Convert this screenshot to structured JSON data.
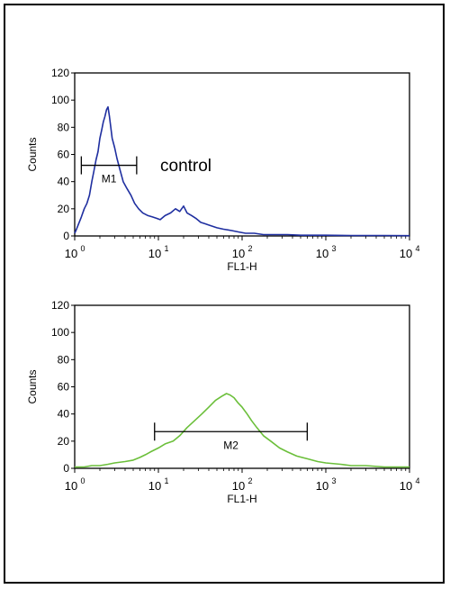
{
  "chart_data": [
    {
      "type": "line",
      "title": "",
      "annotation": "control",
      "xlabel": "FL1-H",
      "ylabel": "Counts",
      "xscale": "log",
      "xlim": [
        1,
        10000
      ],
      "ylim": [
        0,
        120
      ],
      "yticks": [
        0,
        20,
        40,
        60,
        80,
        100,
        120
      ],
      "xticks": [
        {
          "base": "10",
          "exp": "0"
        },
        {
          "base": "10",
          "exp": "1"
        },
        {
          "base": "10",
          "exp": "2"
        },
        {
          "base": "10",
          "exp": "3"
        },
        {
          "base": "10",
          "exp": "4"
        }
      ],
      "color": "#1f2fa0",
      "marker": {
        "label": "M1",
        "range": [
          1.2,
          5.5
        ],
        "y": 52
      },
      "series": [
        {
          "x": [
            1,
            1.05,
            1.1,
            1.2,
            1.3,
            1.4,
            1.5,
            1.6,
            1.7,
            1.8,
            1.9,
            2.0,
            2.1,
            2.2,
            2.3,
            2.4,
            2.5,
            2.6,
            2.7,
            2.8,
            3.0,
            3.2,
            3.5,
            3.8,
            4.2,
            4.7,
            5.2,
            5.8,
            6.5,
            7.5,
            8.5,
            9.5,
            10.5,
            12,
            14,
            16,
            18,
            20,
            22,
            25,
            28,
            32,
            36,
            40,
            50,
            60,
            75,
            90,
            110,
            140,
            180,
            250,
            350,
            500,
            700,
            1000,
            2000,
            5000,
            10000
          ],
          "y": [
            2,
            5,
            8,
            14,
            20,
            24,
            30,
            40,
            48,
            56,
            62,
            72,
            78,
            84,
            88,
            93,
            95,
            88,
            80,
            72,
            65,
            57,
            48,
            40,
            35,
            30,
            24,
            20,
            17,
            15,
            14,
            13,
            12,
            15,
            17,
            20,
            18,
            22,
            17,
            15,
            13,
            10,
            9,
            8,
            6,
            5,
            4,
            3,
            2,
            2,
            1,
            1,
            1,
            0.5,
            0.5,
            0.5,
            0.3,
            0.3,
            0.2
          ]
        }
      ]
    },
    {
      "type": "line",
      "title": "",
      "xlabel": "FL1-H",
      "ylabel": "Counts",
      "xscale": "log",
      "xlim": [
        1,
        10000
      ],
      "ylim": [
        0,
        120
      ],
      "yticks": [
        0,
        20,
        40,
        60,
        80,
        100,
        120
      ],
      "xticks": [
        {
          "base": "10",
          "exp": "0"
        },
        {
          "base": "10",
          "exp": "1"
        },
        {
          "base": "10",
          "exp": "2"
        },
        {
          "base": "10",
          "exp": "3"
        },
        {
          "base": "10",
          "exp": "4"
        }
      ],
      "color": "#6bbf3a",
      "marker": {
        "label": "M2",
        "range": [
          9,
          600
        ],
        "y": 27
      },
      "series": [
        {
          "x": [
            1,
            1.3,
            1.6,
            2,
            2.5,
            3,
            4,
            5,
            6,
            7,
            8,
            10,
            12,
            15,
            18,
            22,
            27,
            33,
            40,
            48,
            57,
            65,
            72,
            80,
            90,
            100,
            115,
            130,
            150,
            180,
            220,
            280,
            350,
            450,
            600,
            800,
            1000,
            1500,
            2000,
            3000,
            5000,
            10000
          ],
          "y": [
            1,
            1,
            2,
            2,
            3,
            4,
            5,
            6,
            8,
            10,
            12,
            15,
            18,
            20,
            24,
            30,
            35,
            40,
            45,
            50,
            53,
            55,
            54,
            52,
            48,
            45,
            40,
            35,
            30,
            24,
            20,
            15,
            12,
            9,
            7,
            5,
            4,
            3,
            2,
            2,
            1,
            1
          ]
        }
      ]
    }
  ]
}
